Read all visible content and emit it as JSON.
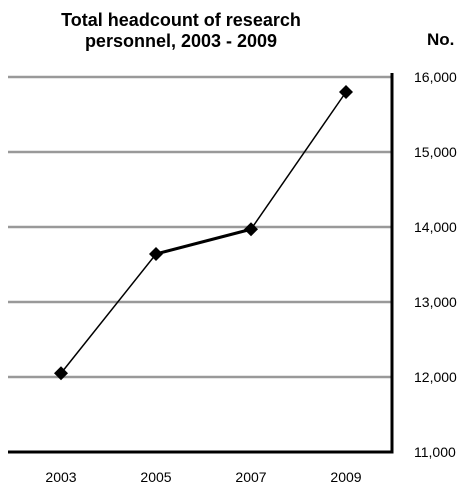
{
  "chart_data": {
    "type": "line",
    "title": "Total headcount of research personnel, 2003 - 2009",
    "title_lines": [
      "Total headcount of research",
      "personnel, 2003 - 2009"
    ],
    "y_unit_label": "No.",
    "x": [
      2003,
      2005,
      2007,
      2009
    ],
    "x_tick_labels": [
      "2003",
      "2005",
      "2007",
      "2009"
    ],
    "y_tick_labels": [
      "16,000",
      "15,000",
      "14,000",
      "13,000",
      "12,000",
      "11,000"
    ],
    "y_ticks": [
      16000,
      15000,
      14000,
      13000,
      12000,
      11000
    ],
    "values": [
      12050,
      13640,
      13970,
      15800
    ],
    "ylim": [
      11000,
      16000
    ],
    "y_axis_position": "right",
    "grid": true,
    "grid_color": "#999999",
    "line_color": "#000000",
    "marker": "diamond"
  }
}
